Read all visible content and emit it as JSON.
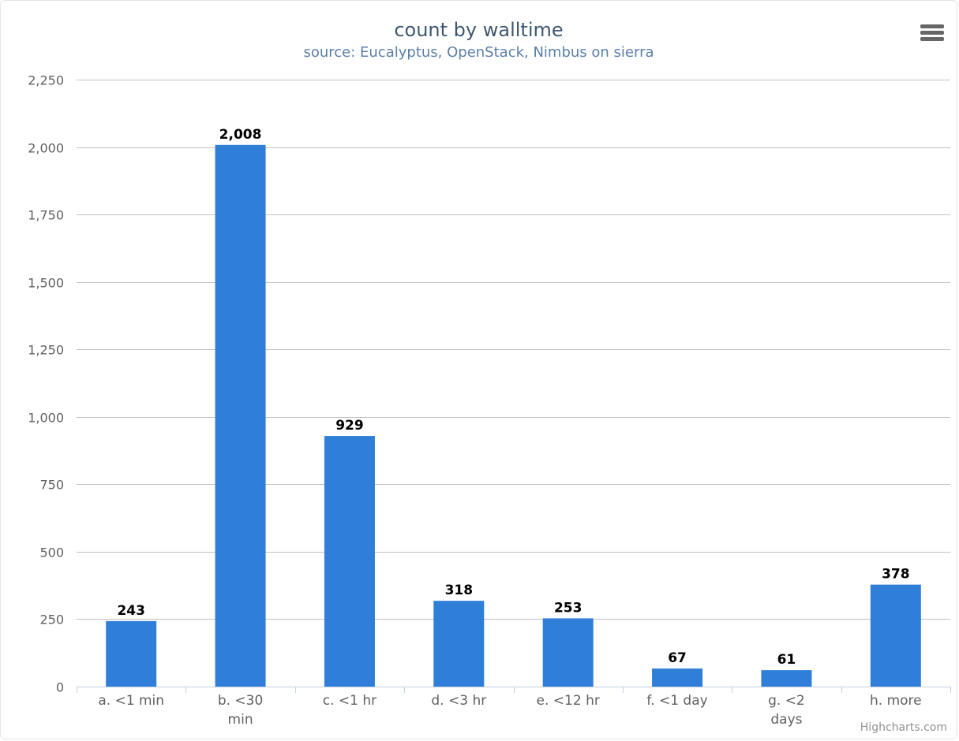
{
  "chart": {
    "title": "count by walltime",
    "subtitle": "source: Eucalyptus, OpenStack, Nimbus on sierra",
    "credits": "Highcharts.com",
    "menu_icon": "hamburger-menu-icon"
  },
  "chart_data": {
    "type": "bar",
    "categories": [
      "a. <1 min",
      "b. <30 min",
      "c. <1 hr",
      "d. <3 hr",
      "e. <12 hr",
      "f. <1 day",
      "g. <2 days",
      "h. more"
    ],
    "category_lines": [
      [
        "a. <1 min"
      ],
      [
        "b. <30",
        "min"
      ],
      [
        "c. <1 hr"
      ],
      [
        "d. <3 hr"
      ],
      [
        "e. <12 hr"
      ],
      [
        "f. <1 day"
      ],
      [
        "g. <2",
        "days"
      ],
      [
        "h. more"
      ]
    ],
    "values": [
      243,
      2008,
      929,
      318,
      253,
      67,
      61,
      378
    ],
    "data_labels": [
      "243",
      "2,008",
      "929",
      "318",
      "253",
      "67",
      "61",
      "378"
    ],
    "title": "count by walltime",
    "subtitle": "source: Eucalyptus, OpenStack, Nimbus on sierra",
    "xlabel": "",
    "ylabel": "",
    "ylim": [
      0,
      2250
    ],
    "yticks": [
      0,
      250,
      500,
      750,
      1000,
      1250,
      1500,
      1750,
      2000,
      2250
    ],
    "ytick_labels": [
      "0",
      "250",
      "500",
      "750",
      "1,000",
      "1,250",
      "1,500",
      "1,750",
      "2,000",
      "2,250"
    ],
    "grid": true,
    "legend": false,
    "bar_color": "#2f7ed8",
    "grid_color": "#c0c0c0",
    "axis_color": "#c0d0e0"
  }
}
